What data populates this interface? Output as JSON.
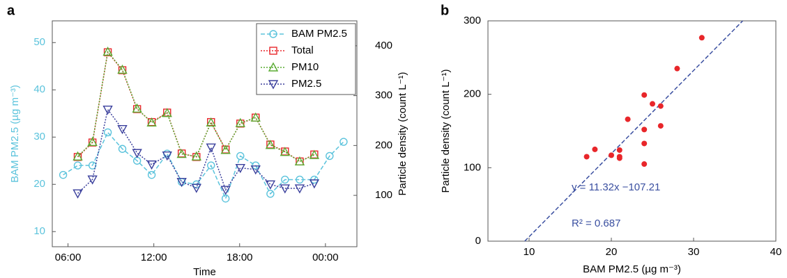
{
  "chart_data": [
    {
      "type": "line",
      "title": "a",
      "xlabel": "Time",
      "ylabel": "BAM PM2.5 (µg m⁻³)",
      "y2label": "Particle density (count L⁻¹)",
      "xlim": [
        4.9,
        26.2
      ],
      "xticks": [
        {
          "value": 6,
          "label": "06:00"
        },
        {
          "value": 12,
          "label": "12:00"
        },
        {
          "value": 18,
          "label": "18:00"
        },
        {
          "value": 24,
          "label": "00:00"
        }
      ],
      "ylim": [
        6.8,
        54.6
      ],
      "yticks": [
        10,
        20,
        30,
        40,
        50
      ],
      "ycolor": "#5bc3dc",
      "y2lim": [
        -3,
        450
      ],
      "y2ticks": [
        100,
        200,
        300,
        400
      ],
      "legend": "upper right",
      "series": [
        {
          "name": "BAM PM2.5",
          "color": "#5bc3dc",
          "marker": "o",
          "linestyle": "dashed",
          "x": [
            5.66,
            6.68,
            7.71,
            8.78,
            9.8,
            10.83,
            11.85,
            12.93,
            13.95,
            14.98,
            16,
            17.02,
            18.05,
            19.12,
            20.15,
            21.17,
            22.2,
            23.22,
            24.29,
            25.27
          ],
          "values": [
            22,
            24,
            24,
            31,
            27.5,
            25,
            22,
            26.5,
            20.5,
            20,
            24,
            17,
            26,
            24,
            18,
            21,
            21,
            21,
            26,
            29
          ]
        },
        {
          "name": "Total",
          "color": "#e8262a",
          "marker": "s",
          "linestyle": "dotted",
          "axis": "y2",
          "x": [
            6.68,
            7.71,
            8.78,
            9.8,
            10.83,
            11.85,
            12.93,
            13.95,
            14.98,
            16,
            17.02,
            18.05,
            19.12,
            20.15,
            21.17,
            22.2,
            23.22
          ],
          "values": [
            177,
            206,
            387,
            351,
            273,
            247,
            266,
            184,
            177,
            247,
            192,
            244,
            256,
            202,
            188,
            168,
            182
          ]
        },
        {
          "name": "PM10",
          "color": "#5aab32",
          "marker": "^",
          "linestyle": "dotted",
          "axis": "y2",
          "x": [
            6.68,
            7.71,
            8.78,
            9.8,
            10.83,
            11.85,
            12.93,
            13.95,
            14.98,
            16,
            17.02,
            18.05,
            19.12,
            20.15,
            21.17,
            22.2,
            23.22
          ],
          "values": [
            178,
            207,
            388,
            352,
            274,
            246,
            265,
            183,
            178,
            246,
            191,
            245,
            256,
            201,
            187,
            168,
            181
          ]
        },
        {
          "name": "PM2.5",
          "color": "#3a3f9c",
          "marker": "v",
          "linestyle": "dotted",
          "axis": "y2",
          "x": [
            6.68,
            7.71,
            8.78,
            9.8,
            10.83,
            11.85,
            12.93,
            13.95,
            14.98,
            16,
            17.02,
            18.05,
            19.12,
            20.15,
            21.17,
            22.2,
            23.22
          ],
          "values": [
            104,
            132,
            272,
            233,
            185,
            162,
            180,
            127,
            115,
            196,
            111,
            155,
            152,
            122,
            114,
            114,
            124
          ]
        }
      ]
    },
    {
      "type": "scatter",
      "title": "b",
      "xlabel": "BAM PM2.5 (µg m⁻³)",
      "ylabel": "Particle density (count L⁻¹)",
      "xlim": [
        5,
        40
      ],
      "xticks": [
        10,
        20,
        30,
        40
      ],
      "ylim": [
        0,
        300
      ],
      "yticks": [
        0,
        100,
        200,
        300
      ],
      "color": "#e8262a",
      "x": [
        17,
        18,
        20,
        21,
        21,
        21,
        22,
        24,
        24,
        24,
        24,
        25,
        26,
        26,
        28,
        31
      ],
      "values": [
        115,
        125,
        117,
        124,
        113,
        115,
        166,
        199,
        152,
        133,
        105,
        187,
        184,
        157,
        235,
        277
      ],
      "fit": {
        "slope": 11.32,
        "intercept": -107.21,
        "color": "#3a4fa0",
        "equation": "y = 11.32x −107.21",
        "r2": "R² = 0.687"
      }
    }
  ]
}
